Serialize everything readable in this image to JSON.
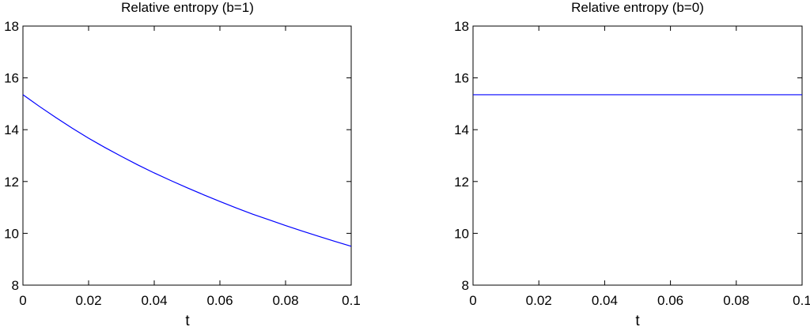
{
  "chart_data": [
    {
      "type": "line",
      "title": "Relative entropy (b=1)",
      "xlabel": "t",
      "ylabel": "",
      "xlim": [
        0,
        0.1
      ],
      "ylim": [
        8,
        18
      ],
      "xticks": [
        "0",
        "0.02",
        "0.04",
        "0.06",
        "0.08",
        "0.1"
      ],
      "yticks": [
        "8",
        "10",
        "12",
        "14",
        "16",
        "18"
      ],
      "grid": false,
      "line_color": "#0000ff",
      "series": [
        {
          "x": [
            0,
            0.005,
            0.01,
            0.015,
            0.02,
            0.025,
            0.03,
            0.035,
            0.04,
            0.045,
            0.05,
            0.055,
            0.06,
            0.065,
            0.07,
            0.075,
            0.08,
            0.085,
            0.09,
            0.095,
            0.1
          ],
          "y": [
            15.35,
            14.9,
            14.47,
            14.06,
            13.67,
            13.31,
            12.97,
            12.64,
            12.33,
            12.04,
            11.76,
            11.49,
            11.23,
            10.98,
            10.74,
            10.52,
            10.3,
            10.09,
            9.89,
            9.69,
            9.5
          ]
        }
      ]
    },
    {
      "type": "line",
      "title": "Relative entropy (b=0)",
      "xlabel": "t",
      "ylabel": "",
      "xlim": [
        0,
        0.1
      ],
      "ylim": [
        8,
        18
      ],
      "xticks": [
        "0",
        "0.02",
        "0.04",
        "0.06",
        "0.08",
        "0.1"
      ],
      "yticks": [
        "8",
        "10",
        "12",
        "14",
        "16",
        "18"
      ],
      "grid": false,
      "line_color": "#0000ff",
      "series": [
        {
          "x": [
            0,
            0.1
          ],
          "y": [
            15.35,
            15.35
          ]
        }
      ]
    }
  ]
}
